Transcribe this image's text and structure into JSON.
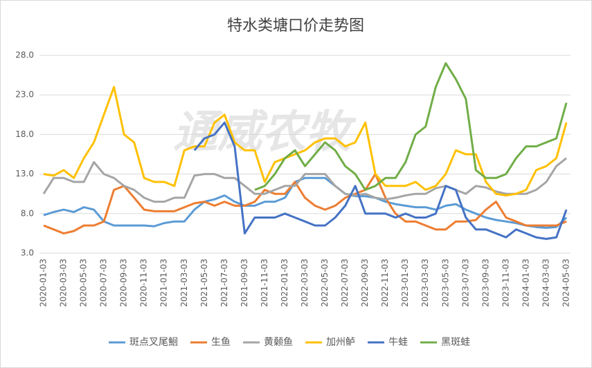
{
  "chart_data": {
    "type": "line",
    "title": "特水类塘口价走势图",
    "watermark": "通威农牧",
    "categories": [
      "2020-01-03",
      null,
      "2020-03-03",
      null,
      "2020-05-03",
      null,
      "2020-07-03",
      null,
      "2020-09-03",
      null,
      "2020-11-03",
      null,
      "2021-01-03",
      null,
      "2021-03-03",
      null,
      "2021-05-03",
      null,
      "2021-07-03",
      null,
      "2021-09-03",
      null,
      "2021-11-03",
      null,
      "2022-01-03",
      null,
      "2022-03-03",
      null,
      "2022-05-03",
      null,
      "2022-07-03",
      null,
      "2022-09-03",
      null,
      "2022-11-03",
      null,
      "2023-01-03",
      null,
      "2023-03-03",
      null,
      "2023-05-03",
      null,
      "2023-07-03",
      null,
      "2023-09-03",
      null,
      "2023-11-03",
      null,
      "2024-01-03",
      null,
      "2024-03-03",
      null,
      "2024-05-03"
    ],
    "ylim": [
      3,
      28
    ],
    "yticks": [
      {
        "value": 3,
        "label": "3.0"
      },
      {
        "value": 8,
        "label": "8.0"
      },
      {
        "value": 13,
        "label": "13.0"
      },
      {
        "value": 18,
        "label": "18.0"
      },
      {
        "value": 23,
        "label": "23.0"
      },
      {
        "value": 28,
        "label": "28.0"
      }
    ],
    "grid": true,
    "legend": "bottom",
    "series": [
      {
        "name": "斑点叉尾鮰",
        "color": "#5b9bd5",
        "values": [
          7.8,
          8.2,
          8.5,
          8.2,
          8.8,
          8.5,
          7.0,
          6.5,
          6.5,
          6.5,
          6.5,
          6.4,
          6.8,
          7.0,
          7.0,
          8.5,
          9.5,
          9.8,
          10.3,
          9.5,
          9.0,
          9.0,
          9.5,
          9.5,
          10.0,
          12.0,
          12.5,
          12.5,
          12.5,
          11.5,
          10.5,
          10.2,
          10.2,
          10.0,
          9.5,
          9.2,
          9.0,
          8.8,
          8.8,
          8.5,
          9.0,
          9.2,
          8.5,
          8.0,
          7.5,
          7.2,
          7.0,
          6.8,
          6.5,
          6.3,
          6.2,
          6.3,
          7.5
        ]
      },
      {
        "name": "生鱼",
        "color": "#ed7d31",
        "values": [
          6.5,
          6.0,
          5.5,
          5.8,
          6.5,
          6.5,
          7.0,
          11.0,
          11.5,
          10.0,
          8.5,
          8.3,
          8.3,
          8.3,
          8.8,
          9.3,
          9.5,
          9.0,
          9.5,
          9.0,
          9.0,
          9.5,
          11.0,
          10.5,
          10.5,
          12.0,
          10.0,
          9.0,
          8.5,
          9.0,
          10.0,
          10.5,
          11.0,
          13.0,
          10.0,
          8.0,
          7.0,
          7.0,
          6.5,
          6.0,
          6.0,
          7.0,
          7.0,
          7.2,
          8.5,
          9.5,
          7.5,
          7.0,
          6.5,
          6.5,
          6.5,
          6.5,
          7.0
        ]
      },
      {
        "name": "黄颡鱼",
        "color": "#a5a5a5",
        "values": [
          10.5,
          12.5,
          12.5,
          12.0,
          12.0,
          14.5,
          13.0,
          12.5,
          11.5,
          11.0,
          10.0,
          9.5,
          9.5,
          10.0,
          10.0,
          12.8,
          13.0,
          13.0,
          12.5,
          12.5,
          11.5,
          10.5,
          10.5,
          11.0,
          11.5,
          11.5,
          13.0,
          13.0,
          13.0,
          11.5,
          10.5,
          10.3,
          10.5,
          10.0,
          9.8,
          10.0,
          10.3,
          10.5,
          10.5,
          11.2,
          11.5,
          11.0,
          10.5,
          11.5,
          11.3,
          10.8,
          10.5,
          10.5,
          10.5,
          11.0,
          12.0,
          14.0,
          15.0
        ]
      },
      {
        "name": "加州鲈",
        "color": "#ffc000",
        "values": [
          13.0,
          12.8,
          13.5,
          12.5,
          15.0,
          17.0,
          20.5,
          24.0,
          18.0,
          17.0,
          12.5,
          12.0,
          12.0,
          11.5,
          16.0,
          16.5,
          16.5,
          19.5,
          20.5,
          17.0,
          16.0,
          16.0,
          12.0,
          14.5,
          15.0,
          15.5,
          16.0,
          17.0,
          17.5,
          17.5,
          16.5,
          17.0,
          19.5,
          13.0,
          11.5,
          11.5,
          11.5,
          12.0,
          11.0,
          11.5,
          13.0,
          16.0,
          15.5,
          15.5,
          12.0,
          10.5,
          10.3,
          10.5,
          11.0,
          13.5,
          14.0,
          15.0,
          19.5
        ]
      },
      {
        "name": "牛蛙",
        "color": "#4472c4",
        "values": [
          null,
          null,
          null,
          null,
          null,
          null,
          null,
          null,
          null,
          null,
          null,
          null,
          null,
          null,
          null,
          16,
          17.5,
          18,
          19.5,
          16.5,
          5.5,
          7.5,
          7.5,
          7.5,
          8.0,
          7.5,
          7.0,
          6.5,
          6.5,
          7.5,
          9.0,
          11.5,
          8.0,
          8.0,
          8.0,
          7.5,
          8.0,
          7.5,
          7.5,
          8.0,
          11.5,
          11.0,
          7.5,
          6.0,
          6.0,
          5.5,
          5.0,
          6.0,
          5.5,
          5.0,
          4.8,
          5.0,
          8.5
        ]
      },
      {
        "name": "黑斑蛙",
        "color": "#70ad47",
        "values": [
          null,
          null,
          null,
          null,
          null,
          null,
          null,
          null,
          null,
          null,
          null,
          null,
          null,
          null,
          null,
          null,
          null,
          null,
          null,
          null,
          null,
          11,
          11.5,
          13,
          15,
          16,
          14,
          15.5,
          17,
          16,
          14,
          13,
          11,
          11.5,
          12.5,
          12.5,
          14.5,
          18,
          19,
          24,
          27,
          25,
          22.5,
          13.5,
          12.5,
          12.5,
          13,
          15,
          16.5,
          16.5,
          17,
          17.5,
          22
        ]
      }
    ]
  }
}
